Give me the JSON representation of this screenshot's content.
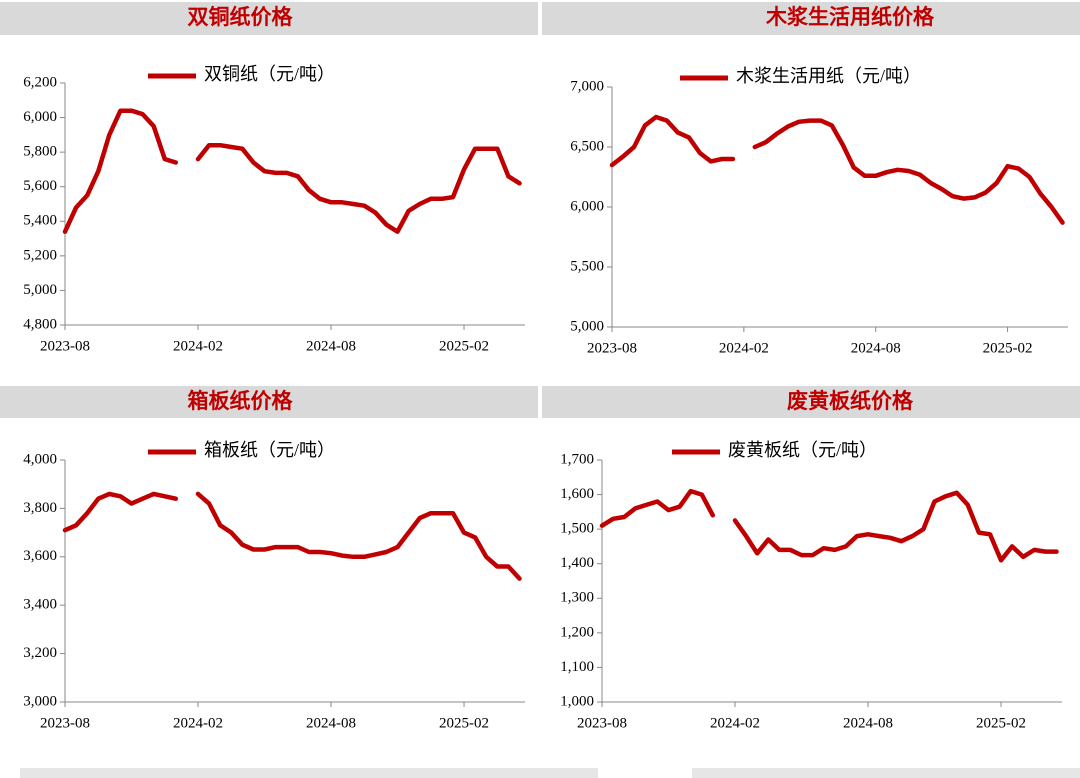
{
  "chart_data": [
    {
      "type": "line",
      "title": "双铜纸价格",
      "categories": [
        "2023-08",
        null,
        null,
        null,
        null,
        null,
        null,
        null,
        null,
        null,
        null,
        null,
        "2024-02",
        null,
        null,
        null,
        null,
        null,
        null,
        null,
        null,
        null,
        null,
        null,
        "2024-08",
        null,
        null,
        null,
        null,
        null,
        null,
        null,
        null,
        null,
        null,
        null,
        "2025-02",
        null,
        null,
        null,
        null,
        null
      ],
      "series": [
        {
          "name": "双铜纸（元/吨）",
          "color": "#c00000",
          "values": [
            5340,
            5480,
            5550,
            5690,
            5900,
            6040,
            6040,
            6020,
            5950,
            5760,
            5740,
            null,
            5760,
            5840,
            5840,
            5830,
            5820,
            5740,
            5690,
            5680,
            5680,
            5660,
            5580,
            5530,
            5510,
            5510,
            5500,
            5490,
            5450,
            5380,
            5340,
            5460,
            5500,
            5530,
            5530,
            5540,
            5700,
            5820,
            5820,
            5820,
            5660,
            5620
          ]
        }
      ],
      "ylim": [
        4800,
        6200
      ],
      "yticks": [
        {
          "value": 4800,
          "label": "4,800"
        },
        {
          "value": 5000,
          "label": "5,000"
        },
        {
          "value": 5200,
          "label": "5,200"
        },
        {
          "value": 5400,
          "label": "5,400"
        },
        {
          "value": 5600,
          "label": "5,600"
        },
        {
          "value": 5800,
          "label": "5,800"
        },
        {
          "value": 6000,
          "label": "6,000"
        },
        {
          "value": 6200,
          "label": "6,200"
        }
      ],
      "grid": false
    },
    {
      "type": "line",
      "title": "木浆生活用纸价格",
      "categories": [
        "2023-08",
        null,
        null,
        null,
        null,
        null,
        null,
        null,
        null,
        null,
        null,
        null,
        "2024-02",
        null,
        null,
        null,
        null,
        null,
        null,
        null,
        null,
        null,
        null,
        null,
        "2024-08",
        null,
        null,
        null,
        null,
        null,
        null,
        null,
        null,
        null,
        null,
        null,
        "2025-02",
        null,
        null,
        null,
        null,
        null
      ],
      "series": [
        {
          "name": "木浆生活用纸（元/吨）",
          "color": "#c00000",
          "values": [
            6350,
            6420,
            6500,
            6680,
            6750,
            6720,
            6620,
            6580,
            6450,
            6380,
            6400,
            6400,
            null,
            6500,
            6540,
            6610,
            6670,
            6710,
            6720,
            6720,
            6680,
            6520,
            6330,
            6260,
            6260,
            6290,
            6310,
            6300,
            6270,
            6200,
            6150,
            6090,
            6070,
            6080,
            6120,
            6200,
            6340,
            6320,
            6250,
            6110,
            6000,
            5870
          ]
        }
      ],
      "ylim": [
        5000,
        7000
      ],
      "yticks": [
        {
          "value": 5000,
          "label": "5,000"
        },
        {
          "value": 5500,
          "label": "5,500"
        },
        {
          "value": 6000,
          "label": "6,000"
        },
        {
          "value": 6500,
          "label": "6,500"
        },
        {
          "value": 7000,
          "label": "7,000"
        }
      ],
      "grid": false
    },
    {
      "type": "line",
      "title": "箱板纸价格",
      "categories": [
        "2023-08",
        null,
        null,
        null,
        null,
        null,
        null,
        null,
        null,
        null,
        null,
        null,
        "2024-02",
        null,
        null,
        null,
        null,
        null,
        null,
        null,
        null,
        null,
        null,
        null,
        "2024-08",
        null,
        null,
        null,
        null,
        null,
        null,
        null,
        null,
        null,
        null,
        null,
        "2025-02",
        null,
        null,
        null,
        null,
        null
      ],
      "series": [
        {
          "name": "箱板纸（元/吨）",
          "color": "#c00000",
          "values": [
            3710,
            3730,
            3780,
            3840,
            3860,
            3850,
            3820,
            3840,
            3860,
            3850,
            3840,
            null,
            3860,
            3820,
            3730,
            3700,
            3650,
            3630,
            3630,
            3640,
            3640,
            3640,
            3620,
            3620,
            3615,
            3605,
            3600,
            3600,
            3610,
            3620,
            3640,
            3700,
            3760,
            3780,
            3780,
            3780,
            3700,
            3680,
            3600,
            3560,
            3560,
            3510
          ]
        }
      ],
      "ylim": [
        3000,
        4000
      ],
      "yticks": [
        {
          "value": 3000,
          "label": "3,000"
        },
        {
          "value": 3200,
          "label": "3,200"
        },
        {
          "value": 3400,
          "label": "3,400"
        },
        {
          "value": 3600,
          "label": "3,600"
        },
        {
          "value": 3800,
          "label": "3,800"
        },
        {
          "value": 4000,
          "label": "4,000"
        }
      ],
      "grid": false
    },
    {
      "type": "line",
      "title": "废黄板纸价格",
      "categories": [
        "2023-08",
        null,
        null,
        null,
        null,
        null,
        null,
        null,
        null,
        null,
        null,
        null,
        "2024-02",
        null,
        null,
        null,
        null,
        null,
        null,
        null,
        null,
        null,
        null,
        null,
        "2024-08",
        null,
        null,
        null,
        null,
        null,
        null,
        null,
        null,
        null,
        null,
        null,
        "2025-02",
        null,
        null,
        null,
        null,
        null
      ],
      "series": [
        {
          "name": "废黄板纸（元/吨）",
          "color": "#c00000",
          "values": [
            1510,
            1530,
            1535,
            1560,
            1570,
            1580,
            1555,
            1565,
            1610,
            1600,
            1540,
            null,
            1525,
            1480,
            1430,
            1470,
            1440,
            1440,
            1425,
            1425,
            1445,
            1440,
            1450,
            1480,
            1485,
            1480,
            1475,
            1465,
            1480,
            1500,
            1580,
            1595,
            1605,
            1570,
            1490,
            1485,
            1410,
            1450,
            1420,
            1440,
            1435,
            1435
          ]
        }
      ],
      "ylim": [
        1000,
        1700
      ],
      "yticks": [
        {
          "value": 1000,
          "label": "1,000"
        },
        {
          "value": 1100,
          "label": "1,100"
        },
        {
          "value": 1200,
          "label": "1,200"
        },
        {
          "value": 1300,
          "label": "1,300"
        },
        {
          "value": 1400,
          "label": "1,400"
        },
        {
          "value": 1500,
          "label": "1,500"
        },
        {
          "value": 1600,
          "label": "1,600"
        },
        {
          "value": 1700,
          "label": "1,700"
        }
      ],
      "grid": false
    }
  ]
}
